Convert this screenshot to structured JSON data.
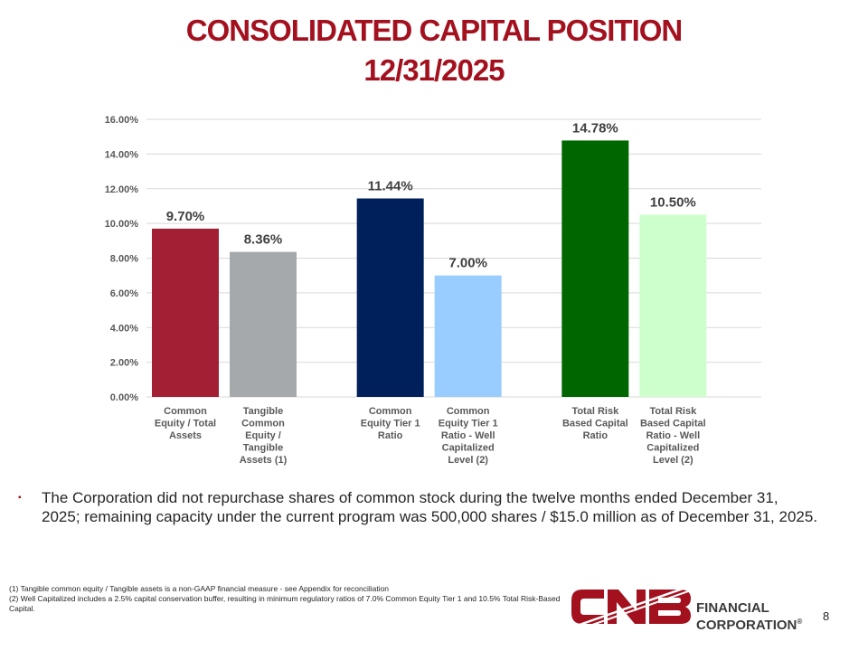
{
  "slide": {
    "title_line1": "CONSOLIDATED CAPITAL POSITION",
    "title_line2": "12/31/2025",
    "bullet_marker": "▪",
    "bullet_text": "The Corporation did not repurchase shares of common stock during the twelve months ended December 31, 2025; remaining capacity under the current program was 500,000 shares / $15.0 million as of December 31, 2025.",
    "footnote_1": "(1) Tangible common equity / Tangible assets is a non-GAAP financial measure - see Appendix for reconciliation",
    "footnote_2": "(2) Well Capitalized includes a 2.5% capital conservation buffer, resulting in minimum regulatory ratios of 7.0% Common Equity Tier 1 and 10.5% Total Risk-Based Capital.",
    "page_number": "8"
  },
  "logo": {
    "mark_text": "CNB",
    "line1": "FINANCIAL",
    "line2": "CORPORATION",
    "registered": "®",
    "color": "#A3111F"
  },
  "chart_data": {
    "type": "bar",
    "title": "",
    "xlabel": "",
    "ylabel": "",
    "ylim": [
      0,
      16
    ],
    "yticks": [
      "0.00%",
      "2.00%",
      "4.00%",
      "6.00%",
      "8.00%",
      "10.00%",
      "12.00%",
      "14.00%",
      "16.00%"
    ],
    "grid": true,
    "legend": "none",
    "groups": [
      {
        "bars": [
          {
            "category": [
              "Common",
              "Equity / Total",
              "Assets"
            ],
            "value": 9.7,
            "label": "9.70%",
            "color": "#A31F34"
          },
          {
            "category": [
              "Tangible",
              "Common",
              "Equity /",
              "Tangible",
              "Assets (1)"
            ],
            "value": 8.36,
            "label": "8.36%",
            "color": "#A6A9AC"
          }
        ]
      },
      {
        "bars": [
          {
            "category": [
              "Common",
              "Equity Tier 1",
              "Ratio"
            ],
            "value": 11.44,
            "label": "11.44%",
            "color": "#00205B"
          },
          {
            "category": [
              "Common",
              "Equity Tier 1",
              "Ratio - Well",
              "Capitalized",
              "Level (2)"
            ],
            "value": 7.0,
            "label": "7.00%",
            "color": "#99CCFF"
          }
        ]
      },
      {
        "bars": [
          {
            "category": [
              "Total Risk",
              "Based Capital",
              "Ratio"
            ],
            "value": 14.78,
            "label": "14.78%",
            "color": "#006600"
          },
          {
            "category": [
              "Total Risk",
              "Based Capital",
              "Ratio - Well",
              "Capitalized",
              "Level (2)"
            ],
            "value": 10.5,
            "label": "10.50%",
            "color": "#CCFFCC"
          }
        ]
      }
    ]
  }
}
